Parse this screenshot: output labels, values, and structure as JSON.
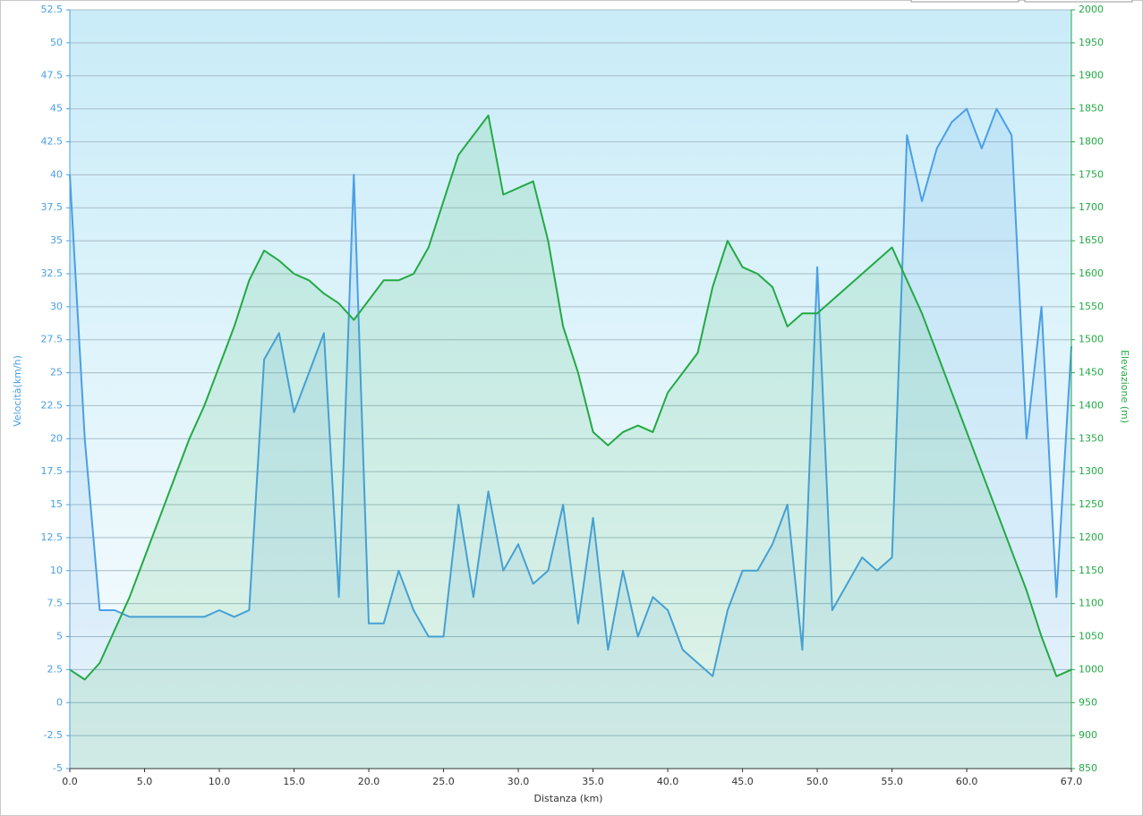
{
  "chart_data": {
    "type": "line",
    "xlabel": "Distanza  (km)",
    "ylabel": "Velocità(km/h)",
    "y2label": "Elevazione (m)",
    "x": [
      0,
      1,
      2,
      3,
      4,
      5,
      6,
      7,
      8,
      9,
      10,
      11,
      12,
      13,
      14,
      15,
      16,
      17,
      18,
      19,
      20,
      21,
      22,
      23,
      24,
      25,
      26,
      27,
      28,
      29,
      30,
      31,
      32,
      33,
      34,
      35,
      36,
      37,
      38,
      39,
      40,
      41,
      42,
      43,
      44,
      45,
      46,
      47,
      48,
      49,
      50,
      51,
      52,
      53,
      54,
      55,
      56,
      57,
      58,
      59,
      60,
      61,
      62,
      63,
      64,
      65,
      66,
      67
    ],
    "series": [
      {
        "color": "#4a9fe6",
        "values": [
          40,
          20,
          7,
          7,
          6.5,
          6.5,
          6.5,
          6.5,
          6.5,
          6.5,
          7,
          6.5,
          7,
          26,
          28,
          22,
          25,
          28,
          8,
          40,
          6,
          6,
          10,
          7,
          5,
          5,
          15,
          8,
          16,
          10,
          12,
          9,
          10,
          15,
          6,
          14,
          4,
          10,
          5,
          8,
          7,
          4,
          3,
          2,
          7,
          10,
          10,
          12,
          15,
          4,
          33,
          7,
          9,
          11,
          10,
          11,
          43,
          38,
          42,
          44,
          45,
          42,
          45,
          43,
          20,
          30,
          8,
          27
        ]
      },
      {
        "color": "#22aa44",
        "axis": "y2",
        "values": [
          1000,
          985,
          1010,
          1060,
          1110,
          1170,
          1230,
          1290,
          1350,
          1400,
          1460,
          1520,
          1590,
          1635,
          1620,
          1600,
          1590,
          1570,
          1555,
          1530,
          1560,
          1590,
          1590,
          1600,
          1640,
          1710,
          1780,
          1810,
          1840,
          1720,
          1730,
          1740,
          1650,
          1520,
          1450,
          1360,
          1340,
          1360,
          1370,
          1360,
          1420,
          1450,
          1480,
          1580,
          1650,
          1610,
          1600,
          1580,
          1520,
          1540,
          1540,
          1560,
          1580,
          1600,
          1620,
          1640,
          1590,
          1540,
          1480,
          1420,
          1360,
          1300,
          1240,
          1180,
          1120,
          1050,
          990,
          1000
        ]
      }
    ],
    "xlim": [
      0,
      67
    ],
    "xticks": [
      {
        "value": 0,
        "label": "0.0"
      },
      {
        "value": 5,
        "label": "5.0"
      },
      {
        "value": 10,
        "label": "10.0"
      },
      {
        "value": 15,
        "label": "15.0"
      },
      {
        "value": 20,
        "label": "20.0"
      },
      {
        "value": 25,
        "label": "25.0"
      },
      {
        "value": 30,
        "label": "30.0"
      },
      {
        "value": 35,
        "label": "35.0"
      },
      {
        "value": 40,
        "label": "40.0"
      },
      {
        "value": 45,
        "label": "45.0"
      },
      {
        "value": 50,
        "label": "50.0"
      },
      {
        "value": 55,
        "label": "55.0"
      },
      {
        "value": 60,
        "label": "60.0"
      },
      {
        "value": 67,
        "label": "67.0"
      }
    ],
    "ylim": [
      -5,
      52.5
    ],
    "yticks": [
      -5,
      -2.5,
      0,
      2.5,
      5,
      7.5,
      10,
      12.5,
      15,
      17.5,
      20,
      22.5,
      25,
      27.5,
      30,
      32.5,
      35,
      37.5,
      40,
      42.5,
      45,
      47.5,
      50,
      52.5
    ],
    "y2lim": [
      850,
      2000
    ],
    "y2ticks": [
      850,
      900,
      950,
      1000,
      1050,
      1100,
      1150,
      1200,
      1250,
      1300,
      1350,
      1400,
      1450,
      1500,
      1550,
      1600,
      1650,
      1700,
      1750,
      1800,
      1850,
      1900,
      1950,
      2000
    ],
    "grid": true
  }
}
